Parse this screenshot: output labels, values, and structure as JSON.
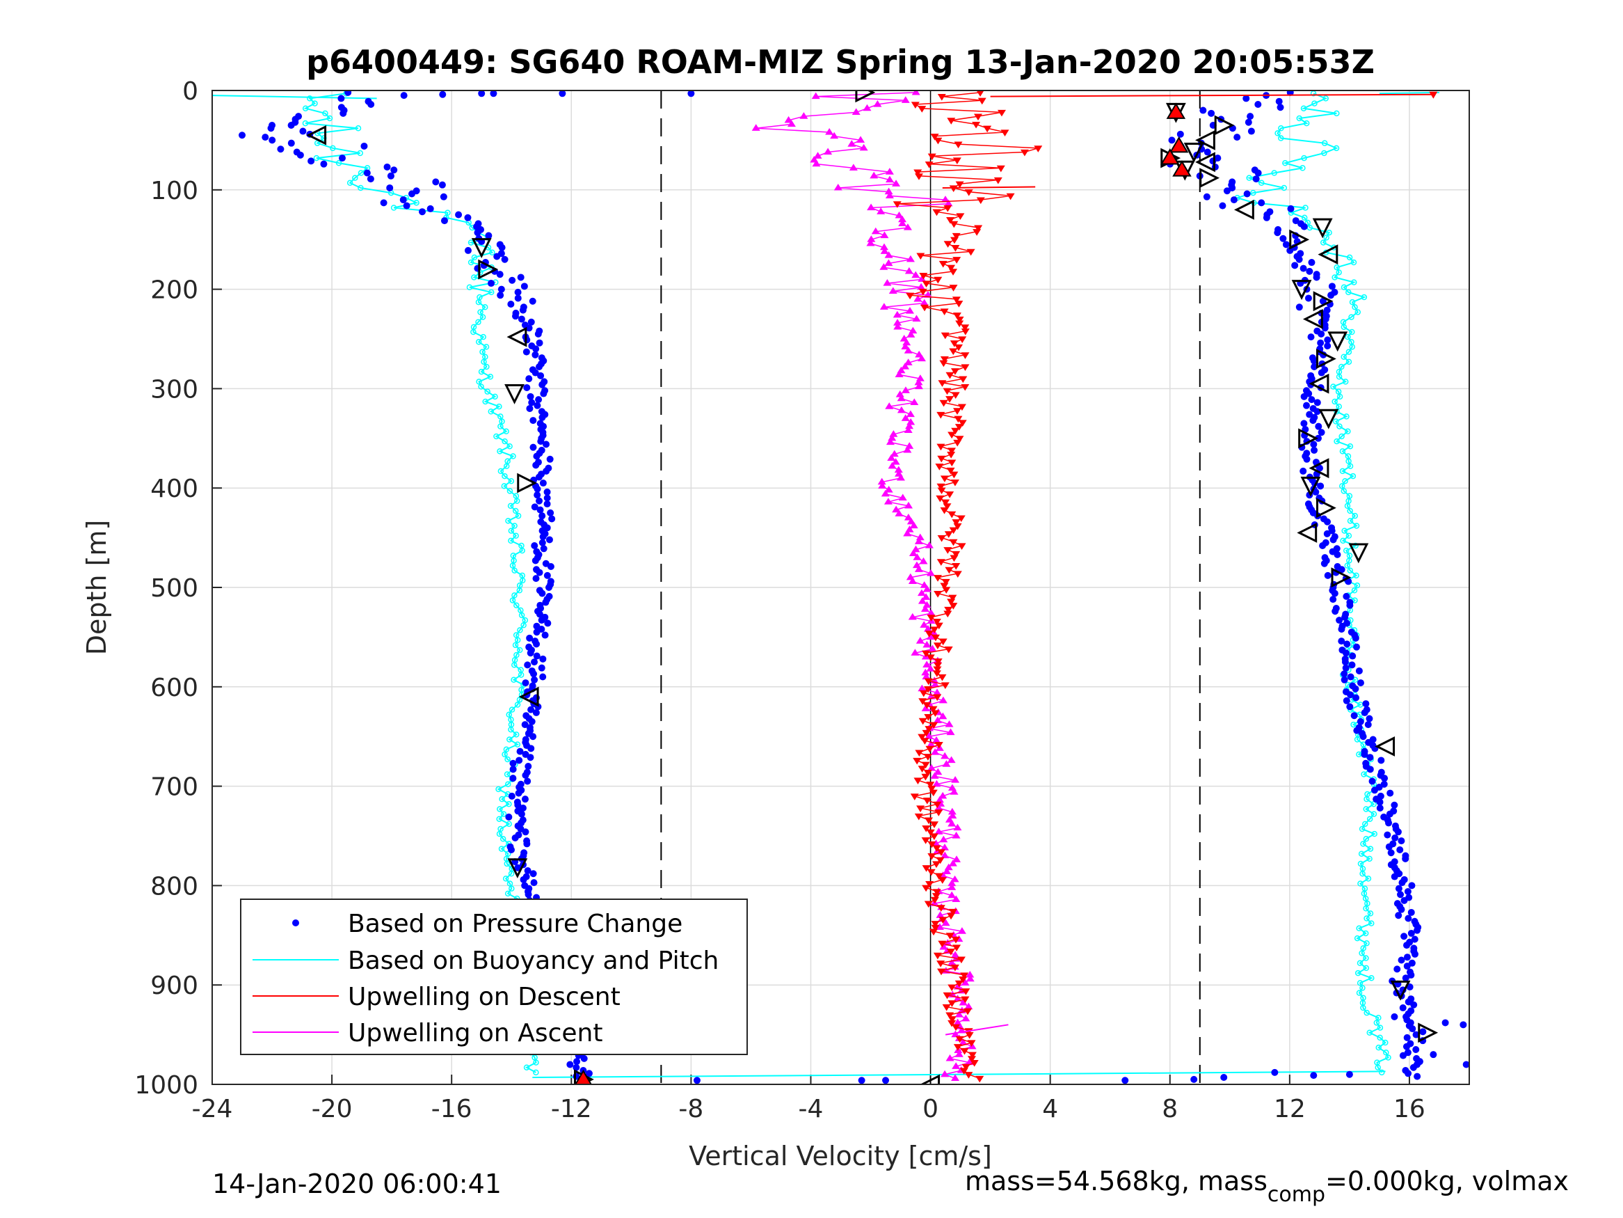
{
  "chart_data": {
    "type": "scatter",
    "title": "p6400449: SG640 ROAM-MIZ Spring 13-Jan-2020 20:05:53Z",
    "xlabel": "Vertical Velocity [cm/s]",
    "ylabel": "Depth [m]",
    "xlim": [
      -24,
      18
    ],
    "ylim": [
      1000,
      0
    ],
    "y_reversed": true,
    "grid": true,
    "x_ticks": [
      "-24",
      "-20",
      "-16",
      "-12",
      "-8",
      "-4",
      "0",
      "4",
      "8",
      "12",
      "16"
    ],
    "y_ticks": [
      "0",
      "100",
      "200",
      "300",
      "400",
      "500",
      "600",
      "700",
      "800",
      "900",
      "1000"
    ],
    "reference_lines": [
      -9,
      9
    ],
    "legend_position": "bottom-left",
    "series": [
      {
        "name": "Based on Pressure Change",
        "style": "dots",
        "color": "#0000ff",
        "depth": [
          0,
          10,
          25,
          45,
          70,
          90,
          110,
          130,
          150,
          170,
          190,
          210,
          240,
          270,
          300,
          330,
          360,
          400,
          450,
          500,
          550,
          600,
          650,
          700,
          750,
          800,
          850,
          900,
          950,
          990
        ],
        "descent": [
          -18.8,
          -19.2,
          -19.5,
          -21.0,
          -19.6,
          -17.8,
          -17.2,
          -15.8,
          -14.9,
          -14.6,
          -14.2,
          -13.8,
          -13.4,
          -13.2,
          -13.2,
          -13.1,
          -13.0,
          -13.0,
          -12.9,
          -13.0,
          -13.1,
          -13.3,
          -13.6,
          -13.8,
          -13.8,
          -13.5,
          -12.9,
          -12.4,
          -11.9,
          -11.7
        ],
        "ascent": [
          11.0,
          10.2,
          10.0,
          9.7,
          9.4,
          9.7,
          10.4,
          11.6,
          12.4,
          12.6,
          12.7,
          12.9,
          13.0,
          12.9,
          12.8,
          12.8,
          12.7,
          12.8,
          13.2,
          13.7,
          13.9,
          14.1,
          14.5,
          15.1,
          15.5,
          15.8,
          16.0,
          15.7,
          16.2,
          16.0
        ]
      },
      {
        "name": "Based on Buoyancy and Pitch",
        "style": "line",
        "color": "#00ffff",
        "depth": [
          0,
          10,
          25,
          45,
          70,
          90,
          110,
          130,
          150,
          170,
          190,
          210,
          240,
          270,
          300,
          330,
          360,
          400,
          450,
          500,
          550,
          600,
          650,
          700,
          750,
          800,
          850,
          900,
          950,
          990
        ],
        "descent": [
          -20.5,
          -20.8,
          -20.4,
          -20.2,
          -19.6,
          -18.4,
          -17.8,
          -16.0,
          -15.2,
          -14.9,
          -15.0,
          -14.9,
          -15.1,
          -15.0,
          -14.8,
          -14.5,
          -14.2,
          -14.1,
          -13.9,
          -13.8,
          -13.7,
          -13.8,
          -14.0,
          -14.2,
          -14.3,
          -14.1,
          -13.8,
          -13.6,
          -13.4,
          -13.3
        ],
        "ascent": [
          13.5,
          13.6,
          13.0,
          12.7,
          12.2,
          11.6,
          11.4,
          12.6,
          13.4,
          13.9,
          14.0,
          14.1,
          14.0,
          13.9,
          13.6,
          13.7,
          13.8,
          14.0,
          14.0,
          14.1,
          14.0,
          14.0,
          14.4,
          14.7,
          14.6,
          14.6,
          14.5,
          14.5,
          14.9,
          15.2
        ]
      },
      {
        "name": "Upwelling on Descent",
        "style": "line-triangle-down",
        "color": "#ff0000",
        "depth": [
          0,
          20,
          40,
          60,
          80,
          100,
          120,
          140,
          160,
          180,
          200,
          240,
          280,
          320,
          360,
          400,
          450,
          500,
          550,
          600,
          650,
          700,
          750,
          800,
          850,
          900,
          950,
          990
        ],
        "values": [
          1.0,
          1.6,
          0.6,
          1.9,
          0.8,
          1.2,
          0.4,
          0.8,
          0.6,
          0.2,
          -0.1,
          0.9,
          0.8,
          0.7,
          0.7,
          0.6,
          0.7,
          0.6,
          0.3,
          0.1,
          -0.1,
          -0.2,
          0.0,
          0.2,
          0.5,
          0.8,
          1.1,
          1.3
        ]
      },
      {
        "name": "Upwelling on Ascent",
        "style": "line-triangle-up",
        "color": "#ff00ff",
        "depth": [
          0,
          20,
          40,
          60,
          80,
          100,
          120,
          140,
          160,
          180,
          200,
          240,
          280,
          320,
          360,
          400,
          450,
          500,
          550,
          600,
          650,
          700,
          750,
          800,
          850,
          900,
          950,
          990
        ],
        "values": [
          -2.0,
          -3.0,
          -4.1,
          -2.8,
          -2.0,
          -1.1,
          -0.9,
          -1.0,
          -1.2,
          -1.5,
          -0.6,
          -0.8,
          -0.6,
          -1.0,
          -1.1,
          -1.3,
          -0.4,
          -0.3,
          -0.2,
          0.0,
          0.3,
          0.5,
          0.6,
          0.4,
          0.7,
          1.0,
          1.2,
          0.8
        ]
      },
      {
        "name": "",
        "style": "open-triangle-markers",
        "color": "#000000",
        "points": [
          [
            -2.2,
            2
          ],
          [
            -20.5,
            45
          ],
          [
            -15.0,
            158
          ],
          [
            -14.8,
            180
          ],
          [
            -13.8,
            248
          ],
          [
            -13.9,
            305
          ],
          [
            -13.5,
            395
          ],
          [
            -13.4,
            610
          ],
          [
            -13.8,
            782
          ],
          [
            -11.6,
            995
          ],
          [
            0.0,
            1000
          ],
          [
            8.2,
            22
          ],
          [
            9.8,
            35
          ],
          [
            9.2,
            50
          ],
          [
            8.8,
            62
          ],
          [
            8.0,
            68
          ],
          [
            9.2,
            72
          ],
          [
            8.5,
            80
          ],
          [
            9.3,
            88
          ],
          [
            10.5,
            120
          ],
          [
            13.1,
            138
          ],
          [
            12.3,
            150
          ],
          [
            13.3,
            165
          ],
          [
            12.4,
            200
          ],
          [
            13.1,
            212
          ],
          [
            12.8,
            230
          ],
          [
            13.6,
            252
          ],
          [
            13.2,
            270
          ],
          [
            13.0,
            295
          ],
          [
            13.3,
            330
          ],
          [
            12.6,
            350
          ],
          [
            13.0,
            380
          ],
          [
            12.7,
            398
          ],
          [
            13.2,
            420
          ],
          [
            12.6,
            445
          ],
          [
            14.3,
            465
          ],
          [
            13.7,
            490
          ],
          [
            15.2,
            660
          ],
          [
            15.7,
            905
          ],
          [
            16.6,
            948
          ]
        ]
      }
    ],
    "footer_left": "14-Jan-2020 06:00:41",
    "footer_right_prefix": "mass=54.568kg, mass",
    "footer_right_sub": "comp",
    "footer_right_suffix": "=0.000kg, volmax"
  }
}
